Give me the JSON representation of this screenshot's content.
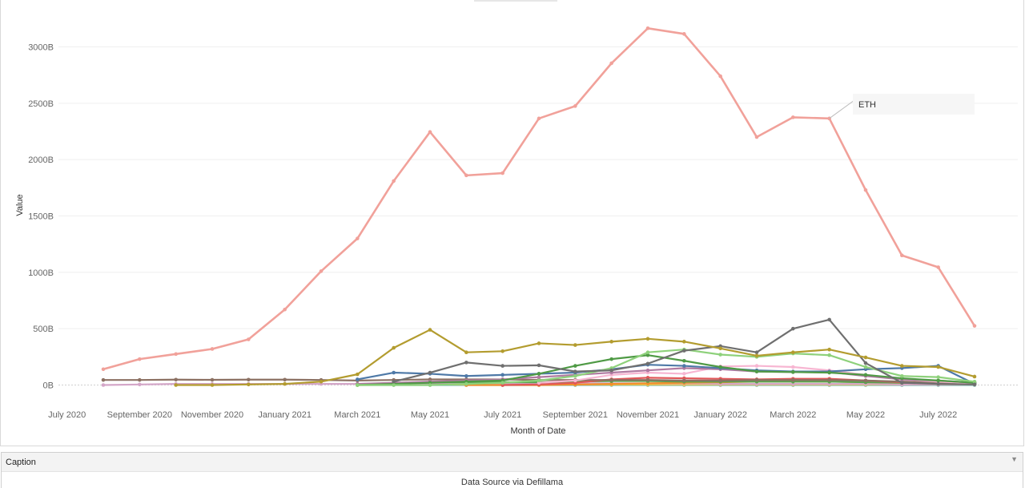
{
  "chart_data": {
    "type": "line",
    "title": "",
    "xlabel": "Month of Date",
    "ylabel": "Value",
    "ylim": [
      -170,
      3260
    ],
    "yticks": [
      0,
      500,
      1000,
      1500,
      2000,
      2500,
      3000
    ],
    "ytick_labels": [
      "0B",
      "500B",
      "1000B",
      "1500B",
      "2000B",
      "2500B",
      "3000B"
    ],
    "x_tick_labels": [
      "July 2020",
      "September 2020",
      "November 2020",
      "January 2021",
      "March 2021",
      "May 2021",
      "July 2021",
      "September 2021",
      "November 2021",
      "January 2022",
      "March 2022",
      "May 2022",
      "July 2022"
    ],
    "grid": true,
    "x": [
      "2020-08",
      "2020-09",
      "2020-10",
      "2020-11",
      "2020-12",
      "2021-01",
      "2021-02",
      "2021-03",
      "2021-04",
      "2021-05",
      "2021-06",
      "2021-07",
      "2021-08",
      "2021-09",
      "2021-10",
      "2021-11",
      "2021-12",
      "2022-01",
      "2022-02",
      "2022-03",
      "2022-04",
      "2022-05",
      "2022-06",
      "2022-07",
      "2022-08"
    ],
    "annotations": [
      {
        "series": "ETH",
        "text": "ETH"
      }
    ],
    "series": [
      {
        "name": "ETH",
        "color": "#f1a19a",
        "values": [
          140,
          230,
          275,
          320,
          405,
          670,
          1010,
          1300,
          1810,
          2245,
          1860,
          1880,
          2365,
          2475,
          2855,
          3165,
          3115,
          2740,
          2200,
          2375,
          2365,
          1730,
          1150,
          1045,
          525
        ]
      },
      {
        "color": "#b39c2f",
        "values": [
          null,
          null,
          0,
          0,
          5,
          10,
          30,
          95,
          330,
          490,
          290,
          300,
          370,
          355,
          385,
          410,
          385,
          325,
          260,
          290,
          315,
          245,
          170,
          160,
          75
        ]
      },
      {
        "color": "#6f6f6f",
        "values": [
          null,
          null,
          null,
          null,
          null,
          null,
          null,
          null,
          30,
          110,
          200,
          170,
          175,
          120,
          130,
          190,
          305,
          345,
          290,
          500,
          580,
          195,
          20,
          10,
          5
        ]
      },
      {
        "color": "#8ed17b",
        "values": [
          null,
          null,
          null,
          null,
          null,
          null,
          null,
          0,
          0,
          0,
          10,
          20,
          40,
          80,
          150,
          290,
          315,
          270,
          250,
          280,
          265,
          160,
          80,
          70,
          30
        ]
      },
      {
        "color": "#4f9a45",
        "values": [
          null,
          null,
          null,
          null,
          null,
          null,
          null,
          0,
          10,
          20,
          30,
          40,
          100,
          170,
          230,
          265,
          215,
          160,
          120,
          115,
          110,
          90,
          60,
          40,
          20
        ]
      },
      {
        "color": "#4e79a7",
        "values": [
          null,
          null,
          null,
          null,
          null,
          null,
          null,
          50,
          110,
          100,
          80,
          90,
          100,
          110,
          140,
          180,
          170,
          150,
          130,
          120,
          120,
          140,
          150,
          170,
          10
        ]
      },
      {
        "color": "#b07aa1",
        "values": [
          null,
          null,
          null,
          null,
          null,
          null,
          null,
          10,
          20,
          30,
          40,
          50,
          70,
          90,
          110,
          130,
          150,
          140,
          120,
          115,
          115,
          80,
          50,
          40,
          20
        ]
      },
      {
        "color": "#f7b6d2",
        "values": [
          null,
          null,
          null,
          null,
          null,
          null,
          null,
          null,
          null,
          null,
          null,
          null,
          20,
          40,
          90,
          110,
          100,
          165,
          170,
          160,
          130,
          90,
          50,
          30,
          15
        ]
      },
      {
        "color": "#8c7163",
        "values": [
          45,
          45,
          48,
          46,
          48,
          48,
          45,
          40,
          45,
          50,
          50,
          50,
          45,
          45,
          45,
          45,
          40,
          40,
          45,
          45,
          45,
          40,
          30,
          25,
          20
        ]
      },
      {
        "color": "#e15759",
        "values": [
          null,
          null,
          null,
          null,
          null,
          null,
          null,
          null,
          null,
          null,
          null,
          0,
          5,
          20,
          50,
          65,
          60,
          55,
          50,
          55,
          55,
          40,
          25,
          20,
          15
        ]
      },
      {
        "color": "#59a14f",
        "values": [
          null,
          null,
          null,
          null,
          null,
          null,
          null,
          5,
          15,
          25,
          25,
          25,
          25,
          30,
          35,
          35,
          30,
          30,
          30,
          30,
          30,
          25,
          20,
          15,
          10
        ]
      },
      {
        "color": "#f28e2b",
        "values": [
          null,
          null,
          null,
          null,
          null,
          null,
          null,
          null,
          null,
          null,
          0,
          0,
          0,
          5,
          10,
          15,
          20,
          25,
          30,
          30,
          30,
          25,
          20,
          15,
          10
        ]
      },
      {
        "color": "#d4a6c8",
        "values": [
          0,
          5,
          10,
          10,
          10,
          10,
          10,
          10,
          15,
          15,
          15,
          15,
          15,
          15,
          15,
          15,
          15,
          10,
          10,
          10,
          10,
          10,
          5,
          5,
          5
        ]
      },
      {
        "color": "#edc948",
        "values": [
          null,
          null,
          null,
          null,
          null,
          null,
          null,
          0,
          2,
          5,
          5,
          5,
          5,
          5,
          5,
          5,
          5,
          5,
          5,
          5,
          5,
          5,
          5,
          5,
          5
        ]
      },
      {
        "color": "#76b7b2",
        "values": [
          null,
          null,
          null,
          null,
          null,
          null,
          null,
          0,
          0,
          0,
          0,
          0,
          0,
          0,
          0,
          0,
          0,
          0,
          0,
          0,
          0,
          0,
          0,
          0,
          0
        ]
      }
    ]
  },
  "caption": {
    "title": "Caption",
    "text": "Data Source via Defillama",
    "toggle_icon": "dropdown-arrow-icon"
  }
}
